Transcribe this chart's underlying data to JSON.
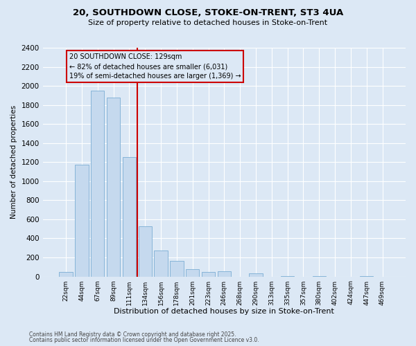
{
  "title_line1": "20, SOUTHDOWN CLOSE, STOKE-ON-TRENT, ST3 4UA",
  "title_line2": "Size of property relative to detached houses in Stoke-on-Trent",
  "xlabel": "Distribution of detached houses by size in Stoke-on-Trent",
  "ylabel": "Number of detached properties",
  "categories": [
    "22sqm",
    "44sqm",
    "67sqm",
    "89sqm",
    "111sqm",
    "134sqm",
    "156sqm",
    "178sqm",
    "201sqm",
    "223sqm",
    "246sqm",
    "268sqm",
    "290sqm",
    "313sqm",
    "335sqm",
    "357sqm",
    "380sqm",
    "402sqm",
    "424sqm",
    "447sqm",
    "469sqm"
  ],
  "values": [
    50,
    1175,
    1950,
    1875,
    1250,
    525,
    270,
    165,
    75,
    50,
    55,
    0,
    30,
    0,
    5,
    0,
    5,
    0,
    0,
    5,
    0
  ],
  "bar_color": "#c5d9ee",
  "bar_edge_color": "#7aadd4",
  "vline_color": "#cc0000",
  "annotation_text": "20 SOUTHDOWN CLOSE: 129sqm\n← 82% of detached houses are smaller (6,031)\n19% of semi-detached houses are larger (1,369) →",
  "ylim": [
    0,
    2400
  ],
  "yticks": [
    0,
    200,
    400,
    600,
    800,
    1000,
    1200,
    1400,
    1600,
    1800,
    2000,
    2200,
    2400
  ],
  "background_color": "#dce8f5",
  "grid_color": "#ffffff",
  "footer_line1": "Contains HM Land Registry data © Crown copyright and database right 2025.",
  "footer_line2": "Contains public sector information licensed under the Open Government Licence v3.0."
}
